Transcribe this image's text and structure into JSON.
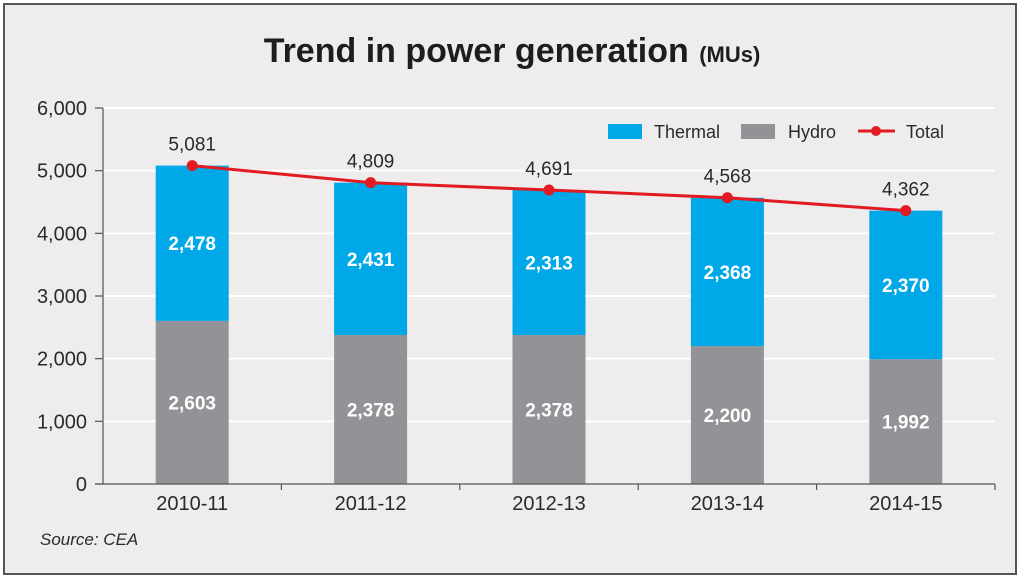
{
  "chart_data": {
    "type": "bar",
    "stacked": true,
    "title": "Trend in power generation",
    "title_unit": "(MUs)",
    "xlabel": "",
    "ylabel": "",
    "ylim": [
      0,
      6000
    ],
    "yticks": [
      0,
      1000,
      2000,
      3000,
      4000,
      5000,
      6000
    ],
    "ytick_labels": [
      "0",
      "1,000",
      "2,000",
      "3,000",
      "4,000",
      "5,000",
      "6,000"
    ],
    "grid": true,
    "legend_position": "top-right",
    "categories": [
      "2010-11",
      "2011-12",
      "2012-13",
      "2013-14",
      "2014-15"
    ],
    "series": [
      {
        "name": "Hydro",
        "kind": "bar",
        "color": "#929396",
        "values": [
          2603,
          2378,
          2378,
          2200,
          1992
        ],
        "labels": [
          "2,603",
          "2,378",
          "2,378",
          "2,200",
          "1,992"
        ]
      },
      {
        "name": "Thermal",
        "kind": "bar",
        "color": "#00a8e8",
        "values": [
          2478,
          2431,
          2313,
          2368,
          2370
        ],
        "labels": [
          "2,478",
          "2,431",
          "2,313",
          "2,368",
          "2,370"
        ]
      },
      {
        "name": "Total",
        "kind": "line",
        "color": "#e21b23",
        "values": [
          5081,
          4809,
          4691,
          4568,
          4362
        ],
        "labels": [
          "5,081",
          "4,809",
          "4,691",
          "4,568",
          "4,362"
        ]
      }
    ],
    "legend": [
      "Thermal",
      "Hydro",
      "Total"
    ],
    "source": "Source: CEA"
  }
}
